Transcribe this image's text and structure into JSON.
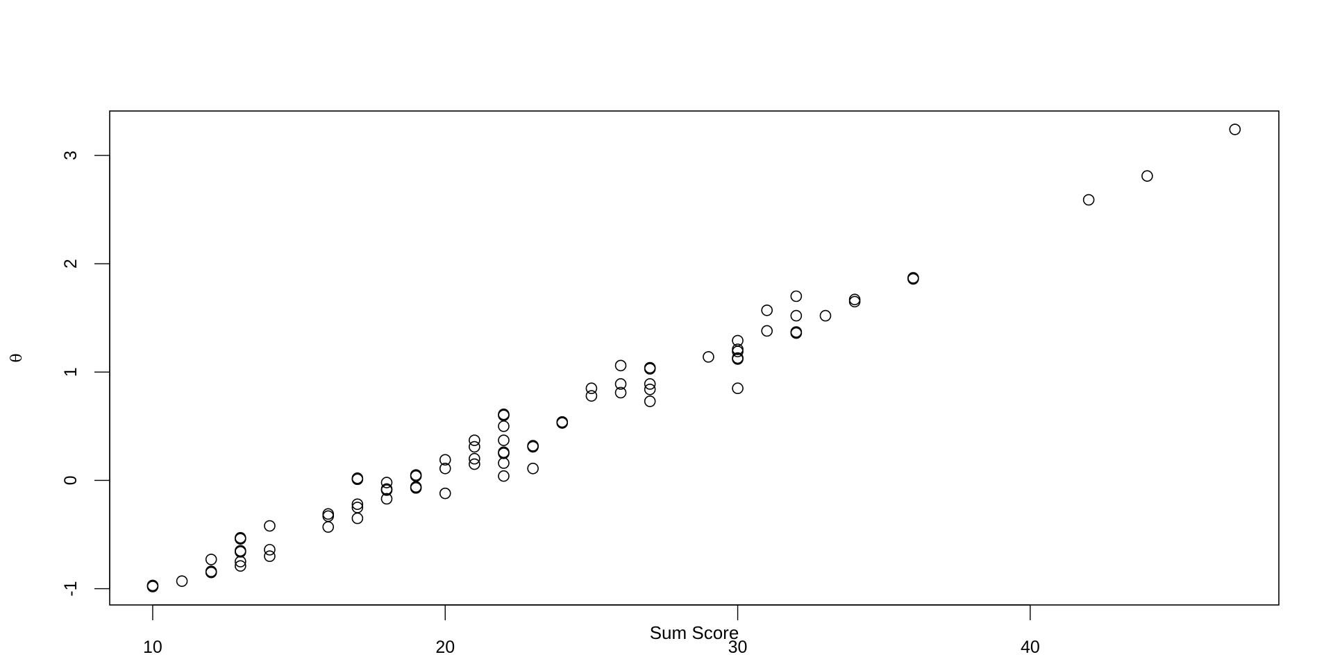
{
  "chart_data": {
    "type": "scatter",
    "title": "",
    "xlabel": "Sum Score",
    "ylabel": "θ",
    "xlim": [
      8.53,
      48.5
    ],
    "ylim": [
      -1.15,
      3.41
    ],
    "xticks": [
      10,
      20,
      30,
      40
    ],
    "yticks": [
      -1,
      0,
      1,
      2,
      3
    ],
    "grid": false,
    "marker": "open-circle",
    "color": "#000000",
    "points": [
      [
        10,
        -0.98
      ],
      [
        10,
        -0.97
      ],
      [
        11,
        -0.93
      ],
      [
        12,
        -0.73
      ],
      [
        12,
        -0.84
      ],
      [
        12,
        -0.85
      ],
      [
        13,
        -0.53
      ],
      [
        13,
        -0.54
      ],
      [
        13,
        -0.65
      ],
      [
        13,
        -0.66
      ],
      [
        13,
        -0.75
      ],
      [
        13,
        -0.79
      ],
      [
        14,
        -0.42
      ],
      [
        14,
        -0.64
      ],
      [
        14,
        -0.7
      ],
      [
        16,
        -0.31
      ],
      [
        16,
        -0.33
      ],
      [
        16,
        -0.43
      ],
      [
        17,
        0.02
      ],
      [
        17,
        0.01
      ],
      [
        17,
        -0.22
      ],
      [
        17,
        -0.25
      ],
      [
        17,
        -0.35
      ],
      [
        18,
        -0.02
      ],
      [
        18,
        -0.08
      ],
      [
        18,
        -0.09
      ],
      [
        18,
        -0.17
      ],
      [
        19,
        0.05
      ],
      [
        19,
        0.04
      ],
      [
        19,
        -0.06
      ],
      [
        19,
        -0.07
      ],
      [
        20,
        0.19
      ],
      [
        20,
        0.11
      ],
      [
        20,
        -0.12
      ],
      [
        21,
        0.37
      ],
      [
        21,
        0.31
      ],
      [
        21,
        0.2
      ],
      [
        21,
        0.15
      ],
      [
        22,
        0.61
      ],
      [
        22,
        0.6
      ],
      [
        22,
        0.5
      ],
      [
        22,
        0.37
      ],
      [
        22,
        0.26
      ],
      [
        22,
        0.25
      ],
      [
        22,
        0.16
      ],
      [
        22,
        0.04
      ],
      [
        23,
        0.32
      ],
      [
        23,
        0.31
      ],
      [
        23,
        0.11
      ],
      [
        24,
        0.54
      ],
      [
        24,
        0.53
      ],
      [
        25,
        0.85
      ],
      [
        25,
        0.78
      ],
      [
        26,
        1.06
      ],
      [
        26,
        0.89
      ],
      [
        26,
        0.81
      ],
      [
        27,
        1.04
      ],
      [
        27,
        1.03
      ],
      [
        27,
        0.89
      ],
      [
        27,
        0.84
      ],
      [
        27,
        0.73
      ],
      [
        29,
        1.14
      ],
      [
        30,
        1.29
      ],
      [
        30,
        1.21
      ],
      [
        30,
        1.19
      ],
      [
        30,
        1.13
      ],
      [
        30,
        1.12
      ],
      [
        30,
        0.85
      ],
      [
        31,
        1.57
      ],
      [
        31,
        1.38
      ],
      [
        32,
        1.7
      ],
      [
        32,
        1.52
      ],
      [
        32,
        1.37
      ],
      [
        32,
        1.36
      ],
      [
        33,
        1.52
      ],
      [
        34,
        1.67
      ],
      [
        34,
        1.65
      ],
      [
        36,
        1.86
      ],
      [
        36,
        1.87
      ],
      [
        42,
        2.59
      ],
      [
        44,
        2.81
      ],
      [
        47,
        3.24
      ]
    ]
  }
}
